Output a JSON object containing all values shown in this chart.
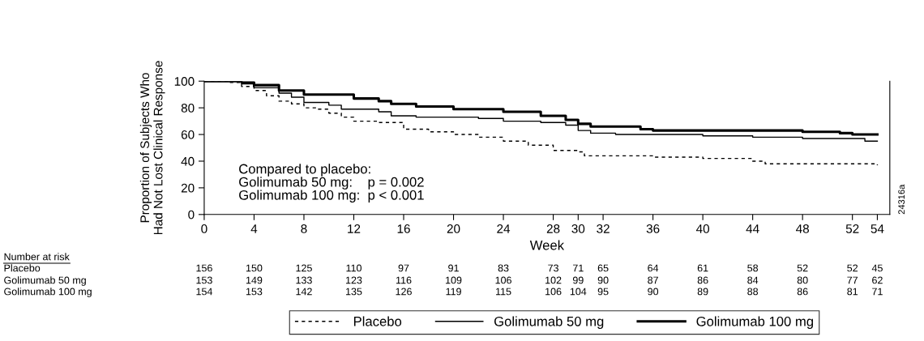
{
  "chart_data": {
    "type": "step",
    "xlabel": "Week",
    "ylabel": "Proportion of Subjects Who\nHad Not Lost Clinical Response",
    "xlim": [
      0,
      55
    ],
    "ylim": [
      0,
      100
    ],
    "xticks": [
      0,
      4,
      8,
      12,
      16,
      20,
      24,
      28,
      30,
      32,
      36,
      40,
      44,
      48,
      52,
      54
    ],
    "yticks": [
      0,
      20,
      40,
      60,
      80,
      100
    ],
    "grid": false,
    "legend": "bottom",
    "series": [
      {
        "name": "Placebo",
        "color": "#000000",
        "line_style": "dashed",
        "x": [
          0,
          2,
          3,
          4,
          5,
          6,
          7,
          8,
          9,
          10,
          11,
          12,
          14,
          16,
          18,
          20,
          22,
          24,
          26,
          28,
          30,
          30.5,
          36,
          40,
          44,
          45,
          54
        ],
        "values": [
          100,
          99,
          96,
          93,
          89,
          85,
          83,
          80,
          79,
          76,
          73,
          70,
          69,
          64,
          62,
          60,
          58,
          55,
          52,
          48,
          47,
          44,
          43,
          42,
          40,
          38,
          37
        ]
      },
      {
        "name": "Golimumab 50 mg",
        "color": "#000000",
        "line_style": "solid",
        "x": [
          0,
          3,
          4,
          6,
          7,
          8,
          10,
          11,
          14,
          15,
          17,
          22,
          24,
          27,
          29,
          30,
          31,
          33,
          40,
          44,
          48,
          53,
          54
        ],
        "values": [
          100,
          98,
          95,
          91,
          88,
          84,
          82,
          79,
          77,
          74,
          73,
          72,
          70,
          69,
          67,
          63,
          61,
          60,
          59,
          58,
          57,
          55,
          55
        ]
      },
      {
        "name": "Golimumab 100 mg",
        "color": "#000000",
        "line_style": "solid",
        "x": [
          0,
          3,
          4,
          6,
          8,
          12,
          14,
          15,
          17,
          20,
          24,
          27,
          29,
          30,
          31,
          35,
          36,
          48,
          51,
          52,
          54
        ],
        "values": [
          100,
          99,
          97,
          93,
          90,
          87,
          85,
          83,
          81,
          79,
          77,
          74,
          71,
          68,
          66,
          64,
          63,
          62,
          61,
          60,
          60
        ]
      }
    ],
    "annotations": [
      "Compared to placebo:\nGolimumab 50 mg:    p = 0.002\nGolimumab 100 mg:  p < 0.001",
      "24316a",
      "Number at risk",
      "Placebo",
      "156 150 125 110 97 91 83 73 71 65 64 61 58 52 52 45",
      "Golimumab 50 mg",
      "153 149 133 123 116 109 106 102 99 90 87 86 84 80 77 62",
      "Golimumab 100 mg",
      "154 153 142 135 126 119 115 106 104 95 90 89 88 86 81 71"
    ]
  }
}
